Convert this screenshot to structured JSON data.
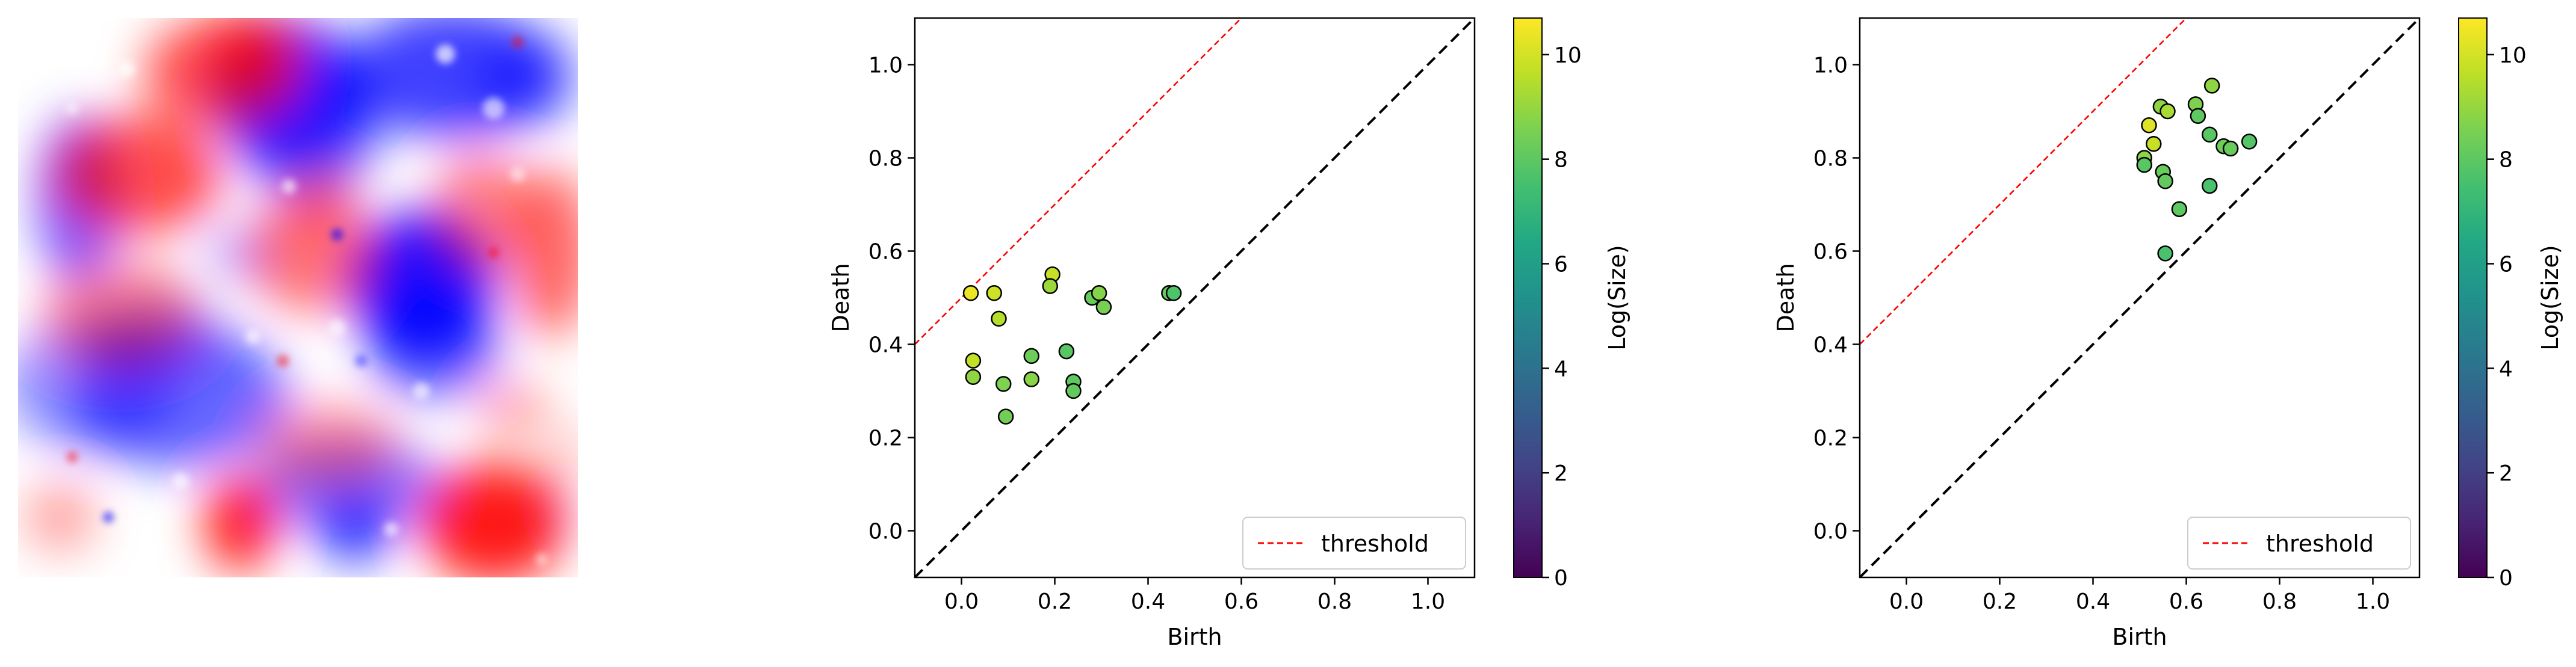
{
  "figure": {
    "panel_count": 3
  },
  "field_image": {
    "colormap": "bwr",
    "colors": {
      "low": "#0000ff",
      "mid": "#ffffff",
      "high": "#ff0000"
    }
  },
  "chart_data": [
    {
      "type": "scatter",
      "title": "",
      "xlabel": "Birth",
      "ylabel": "Death",
      "xlim": [
        -0.1,
        1.1
      ],
      "ylim": [
        -0.1,
        1.1
      ],
      "xticks": [
        "0.0",
        "0.2",
        "0.4",
        "0.6",
        "0.8",
        "1.0"
      ],
      "yticks": [
        "0.0",
        "0.2",
        "0.4",
        "0.6",
        "0.8",
        "1.0"
      ],
      "diagonal": {
        "style": "dashed",
        "color": "#000000"
      },
      "threshold": {
        "label": "threshold",
        "offset": 0.5,
        "color": "#ff0000",
        "style": "dashed"
      },
      "legend": {
        "position": "lower-right",
        "entries": [
          "threshold"
        ]
      },
      "colorbar": {
        "label": "Log(Size)",
        "range": [
          0,
          10.7
        ],
        "ticks": [
          "0",
          "2",
          "4",
          "6",
          "8",
          "10"
        ],
        "colormap": "viridis"
      },
      "points": [
        {
          "x": 0.02,
          "y": 0.51,
          "c": 10.4
        },
        {
          "x": 0.07,
          "y": 0.51,
          "c": 9.9
        },
        {
          "x": 0.08,
          "y": 0.455,
          "c": 9.5
        },
        {
          "x": 0.025,
          "y": 0.365,
          "c": 9.7
        },
        {
          "x": 0.025,
          "y": 0.33,
          "c": 8.9
        },
        {
          "x": 0.09,
          "y": 0.315,
          "c": 8.6
        },
        {
          "x": 0.095,
          "y": 0.245,
          "c": 8.4
        },
        {
          "x": 0.15,
          "y": 0.375,
          "c": 8.3
        },
        {
          "x": 0.15,
          "y": 0.325,
          "c": 8.8
        },
        {
          "x": 0.195,
          "y": 0.55,
          "c": 9.8
        },
        {
          "x": 0.19,
          "y": 0.525,
          "c": 9.1
        },
        {
          "x": 0.225,
          "y": 0.385,
          "c": 7.9
        },
        {
          "x": 0.24,
          "y": 0.32,
          "c": 8.0
        },
        {
          "x": 0.24,
          "y": 0.3,
          "c": 8.1
        },
        {
          "x": 0.28,
          "y": 0.5,
          "c": 8.2
        },
        {
          "x": 0.295,
          "y": 0.51,
          "c": 8.7
        },
        {
          "x": 0.305,
          "y": 0.48,
          "c": 8.5
        },
        {
          "x": 0.445,
          "y": 0.51,
          "c": 8.2
        },
        {
          "x": 0.455,
          "y": 0.51,
          "c": 7.7
        }
      ]
    },
    {
      "type": "scatter",
      "title": "",
      "xlabel": "Birth",
      "ylabel": "Death",
      "xlim": [
        -0.1,
        1.1
      ],
      "ylim": [
        -0.1,
        1.1
      ],
      "xticks": [
        "0.0",
        "0.2",
        "0.4",
        "0.6",
        "0.8",
        "1.0"
      ],
      "yticks": [
        "0.0",
        "0.2",
        "0.4",
        "0.6",
        "0.8",
        "1.0"
      ],
      "diagonal": {
        "style": "dashed",
        "color": "#000000"
      },
      "threshold": {
        "label": "threshold",
        "offset": 0.5,
        "color": "#ff0000",
        "style": "dashed"
      },
      "legend": {
        "position": "lower-right",
        "entries": [
          "threshold"
        ]
      },
      "colorbar": {
        "label": "Log(Size)",
        "range": [
          0,
          10.7
        ],
        "ticks": [
          "0",
          "2",
          "4",
          "6",
          "8",
          "10"
        ],
        "colormap": "viridis"
      },
      "points": [
        {
          "x": 0.52,
          "y": 0.87,
          "c": 10.2
        },
        {
          "x": 0.53,
          "y": 0.83,
          "c": 9.8
        },
        {
          "x": 0.51,
          "y": 0.8,
          "c": 8.8
        },
        {
          "x": 0.51,
          "y": 0.785,
          "c": 7.9
        },
        {
          "x": 0.545,
          "y": 0.91,
          "c": 8.9
        },
        {
          "x": 0.56,
          "y": 0.9,
          "c": 9.3
        },
        {
          "x": 0.55,
          "y": 0.77,
          "c": 8.2
        },
        {
          "x": 0.555,
          "y": 0.75,
          "c": 8.1
        },
        {
          "x": 0.585,
          "y": 0.69,
          "c": 8.0
        },
        {
          "x": 0.555,
          "y": 0.595,
          "c": 7.6
        },
        {
          "x": 0.62,
          "y": 0.915,
          "c": 8.6
        },
        {
          "x": 0.625,
          "y": 0.89,
          "c": 8.0
        },
        {
          "x": 0.655,
          "y": 0.955,
          "c": 8.9
        },
        {
          "x": 0.65,
          "y": 0.85,
          "c": 7.9
        },
        {
          "x": 0.68,
          "y": 0.825,
          "c": 8.3
        },
        {
          "x": 0.695,
          "y": 0.82,
          "c": 8.2
        },
        {
          "x": 0.735,
          "y": 0.835,
          "c": 7.8
        },
        {
          "x": 0.65,
          "y": 0.74,
          "c": 7.6
        }
      ]
    }
  ]
}
